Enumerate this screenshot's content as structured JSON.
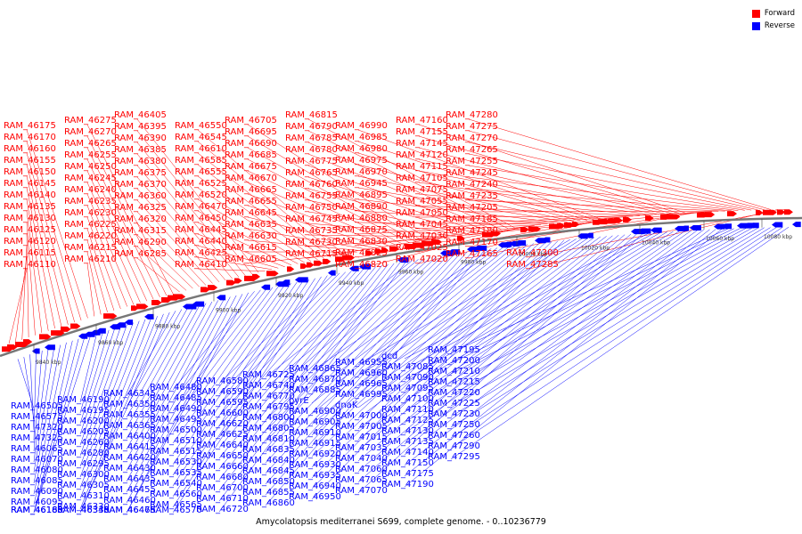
{
  "legend": {
    "forward": {
      "label": "Forward",
      "color": "#ff0000"
    },
    "reverse": {
      "label": "Reverse",
      "color": "#0000ff"
    }
  },
  "caption": "Amycolatopsis mediterranei S699, complete genome. - 0..10236779",
  "axis_ticks": [
    "9840 kbp",
    "9860 kbp",
    "9880 kbp",
    "9900 kbp",
    "9920 kbp",
    "9940 kbp",
    "9960 kbp",
    "9980 kbp",
    "10000 kbp",
    "10020 kbp",
    "10040 kbp",
    "10060 kbp",
    "10080 kbp"
  ],
  "forward_labels": [
    "RAM_46110",
    "RAM_46115",
    "RAM_46120",
    "RAM_46125",
    "RAM_46130",
    "RAM_46135",
    "RAM_46140",
    "RAM_46145",
    "RAM_46150",
    "RAM_46155",
    "RAM_46160",
    "RAM_46170",
    "RAM_46175",
    "RAM_46210",
    "RAM_46215",
    "RAM_46220",
    "RAM_46225",
    "RAM_46230",
    "RAM_46235",
    "RAM_46240",
    "RAM_46245",
    "RAM_46250",
    "RAM_46255",
    "RAM_46265",
    "RAM_46270",
    "RAM_46275",
    "RAM_46285",
    "RAM_46290",
    "RAM_46315",
    "RAM_46320",
    "RAM_46325",
    "RAM_46360",
    "RAM_46370",
    "RAM_46375",
    "RAM_46380",
    "RAM_46385",
    "RAM_46390",
    "RAM_46395",
    "RAM_46405",
    "RAM_46410",
    "RAM_46425",
    "RAM_46440",
    "RAM_46445",
    "RAM_46450",
    "RAM_46470",
    "RAM_46520",
    "RAM_46525",
    "RAM_46555",
    "RAM_46585",
    "RAM_46610",
    "RAM_46545",
    "RAM_46550",
    "RAM_46605",
    "RAM_46615",
    "RAM_46630",
    "RAM_46635",
    "RAM_46645",
    "RAM_46655",
    "RAM_46665",
    "RAM_46670",
    "RAM_46675",
    "RAM_46685",
    "RAM_46690",
    "RAM_46695",
    "RAM_46705",
    "RAM_46715",
    "RAM_46730",
    "RAM_46735",
    "RAM_46745",
    "RAM_46750",
    "RAM_46755",
    "RAM_46760",
    "RAM_46765",
    "RAM_46775",
    "RAM_46780",
    "RAM_46785",
    "RAM_46790",
    "RAM_46815",
    "RAM_46820",
    "RAM_46825",
    "RAM_46830",
    "RAM_46875",
    "RAM_46880",
    "RAM_46890",
    "RAM_46895",
    "RAM_46945",
    "RAM_46970",
    "RAM_46975",
    "RAM_46980",
    "RAM_46985",
    "RAM_46990",
    "RAM_47020",
    "RAM_47025",
    "RAM_47030",
    "RAM_47045",
    "RAM_47050",
    "RAM_47055",
    "RAM_47075",
    "RAM_47105",
    "RAM_47115",
    "RAM_47120",
    "RAM_47145",
    "RAM_47155",
    "RAM_47160",
    "RAM_47165",
    "RAM_47170",
    "RAM_47180",
    "RAM_47185",
    "RAM_47205",
    "RAM_47235",
    "RAM_47240",
    "RAM_47245",
    "RAM_47255",
    "RAM_47265",
    "RAM_47270",
    "RAM_47275",
    "RAM_47280",
    "RAM_47285",
    "RAM_47300"
  ],
  "reverse_labels": [
    "RAM_46505",
    "RAM_46575",
    "RAM_47320",
    "RAM_47325",
    "RAM_46065",
    "RAM_46070",
    "RAM_46080",
    "RAM_46085",
    "RAM_46090",
    "RAM_46095",
    "RAM_46165",
    "RAM_46180",
    "RAM_46185",
    "RAM_46190",
    "RAM_46195",
    "RAM_46200",
    "RAM_46205",
    "RAM_46260",
    "RAM_46280",
    "RAM_46295",
    "RAM_46300",
    "RAM_46305",
    "RAM_46310",
    "RAM_46330",
    "RAM_46335",
    "RAM_46340",
    "RAM_46345",
    "RAM_46350",
    "RAM_46355",
    "RAM_46365",
    "RAM_46400",
    "RAM_46415",
    "RAM_46420",
    "RAM_46430",
    "RAM_46435",
    "RAM_46455",
    "RAM_46460",
    "RAM_46465",
    "RAM_46475",
    "RAM_46480",
    "RAM_46485",
    "RAM_46490",
    "RAM_46495",
    "RAM_46500",
    "RAM_46510",
    "RAM_46515",
    "RAM_46530",
    "RAM_46535",
    "RAM_46540",
    "RAM_46560",
    "RAM_46565",
    "RAM_46570",
    "RAM_46580",
    "RAM_46590",
    "RAM_46595",
    "RAM_46600",
    "RAM_46620",
    "RAM_46625",
    "RAM_46640",
    "RAM_46650",
    "RAM_46660",
    "RAM_46680",
    "RAM_46700",
    "RAM_46710",
    "RAM_46720",
    "RAM_46725",
    "RAM_46740",
    "RAM_46770",
    "RAM_46795",
    "RAM_46800",
    "RAM_46805",
    "RAM_46810",
    "RAM_46835",
    "RAM_46840",
    "RAM_46845",
    "RAM_46850",
    "RAM_46855",
    "RAM_46860",
    "RAM_46865",
    "RAM_46870",
    "RAM_46885",
    "pyrE",
    "RAM_46900",
    "RAM_46905",
    "RAM_46910",
    "RAM_46915",
    "RAM_46920",
    "RAM_46930",
    "RAM_46935",
    "RAM_46940",
    "RAM_46950",
    "RAM_46955",
    "RAM_46960",
    "RAM_46965",
    "RAM_46995",
    "dnaK",
    "RAM_47000",
    "RAM_47005",
    "RAM_47015",
    "RAM_47035",
    "RAM_47040",
    "RAM_47060",
    "RAM_47065",
    "RAM_47070",
    "dcd",
    "RAM_47085",
    "RAM_47090",
    "RAM_47095",
    "RAM_47100",
    "RAM_47110",
    "RAM_47125",
    "RAM_47130",
    "RAM_47135",
    "RAM_47140",
    "RAM_47150",
    "RAM_47175",
    "RAM_47190",
    "RAM_47195",
    "RAM_47200",
    "RAM_47210",
    "RAM_47215",
    "RAM_47220",
    "RAM_47225",
    "RAM_47230",
    "RAM_47250",
    "RAM_47260",
    "RAM_47290",
    "RAM_47295"
  ]
}
